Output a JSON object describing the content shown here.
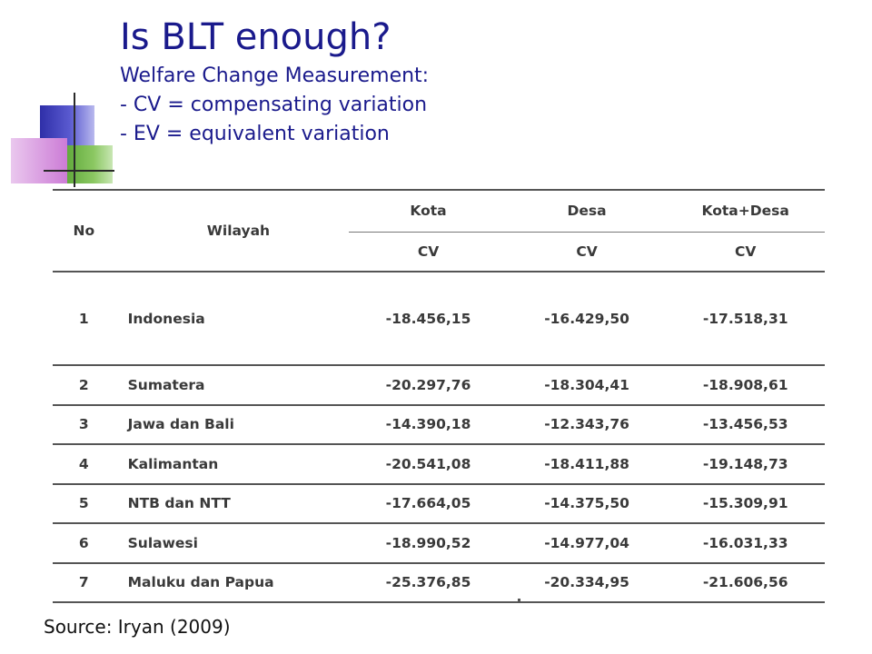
{
  "title": "Is BLT enough?",
  "subtitle_lines": [
    "Welfare Change Measurement:",
    "- CV = compensating variation",
    "- EV = equivalent variation"
  ],
  "table": {
    "headers": {
      "no": "No",
      "wilayah": "Wilayah",
      "kota": "Kota",
      "desa": "Desa",
      "kota_desa": "Kota+Desa",
      "cv": "CV"
    },
    "rows": [
      {
        "no": "1",
        "wilayah": "Indonesia",
        "kota": "-18.456,15",
        "desa": "-16.429,50",
        "kota_desa": "-17.518,31"
      },
      {
        "no": "2",
        "wilayah": "Sumatera",
        "kota": "-20.297,76",
        "desa": "-18.304,41",
        "kota_desa": "-18.908,61"
      },
      {
        "no": "3",
        "wilayah": "Jawa dan Bali",
        "kota": "-14.390,18",
        "desa": "-12.343,76",
        "kota_desa": "-13.456,53"
      },
      {
        "no": "4",
        "wilayah": "Kalimantan",
        "kota": "-20.541,08",
        "desa": "-18.411,88",
        "kota_desa": "-19.148,73"
      },
      {
        "no": "5",
        "wilayah": "NTB dan NTT",
        "kota": "-17.664,05",
        "desa": "-14.375,50",
        "kota_desa": "-15.309,91"
      },
      {
        "no": "6",
        "wilayah": "Sulawesi",
        "kota": "-18.990,52",
        "desa": "-14.977,04",
        "kota_desa": "-16.031,33"
      },
      {
        "no": "7",
        "wilayah": "Maluku dan Papua",
        "kota": "-25.376,85",
        "desa": "-20.334,95",
        "kota_desa": "-21.606,56"
      }
    ]
  },
  "source": "Source: Iryan (2009)",
  "colors": {
    "title": "#1a1a8c",
    "deco_blue": "#2f2fa8",
    "deco_green": "#5fa83a",
    "deco_pink": "#d89ae0"
  }
}
